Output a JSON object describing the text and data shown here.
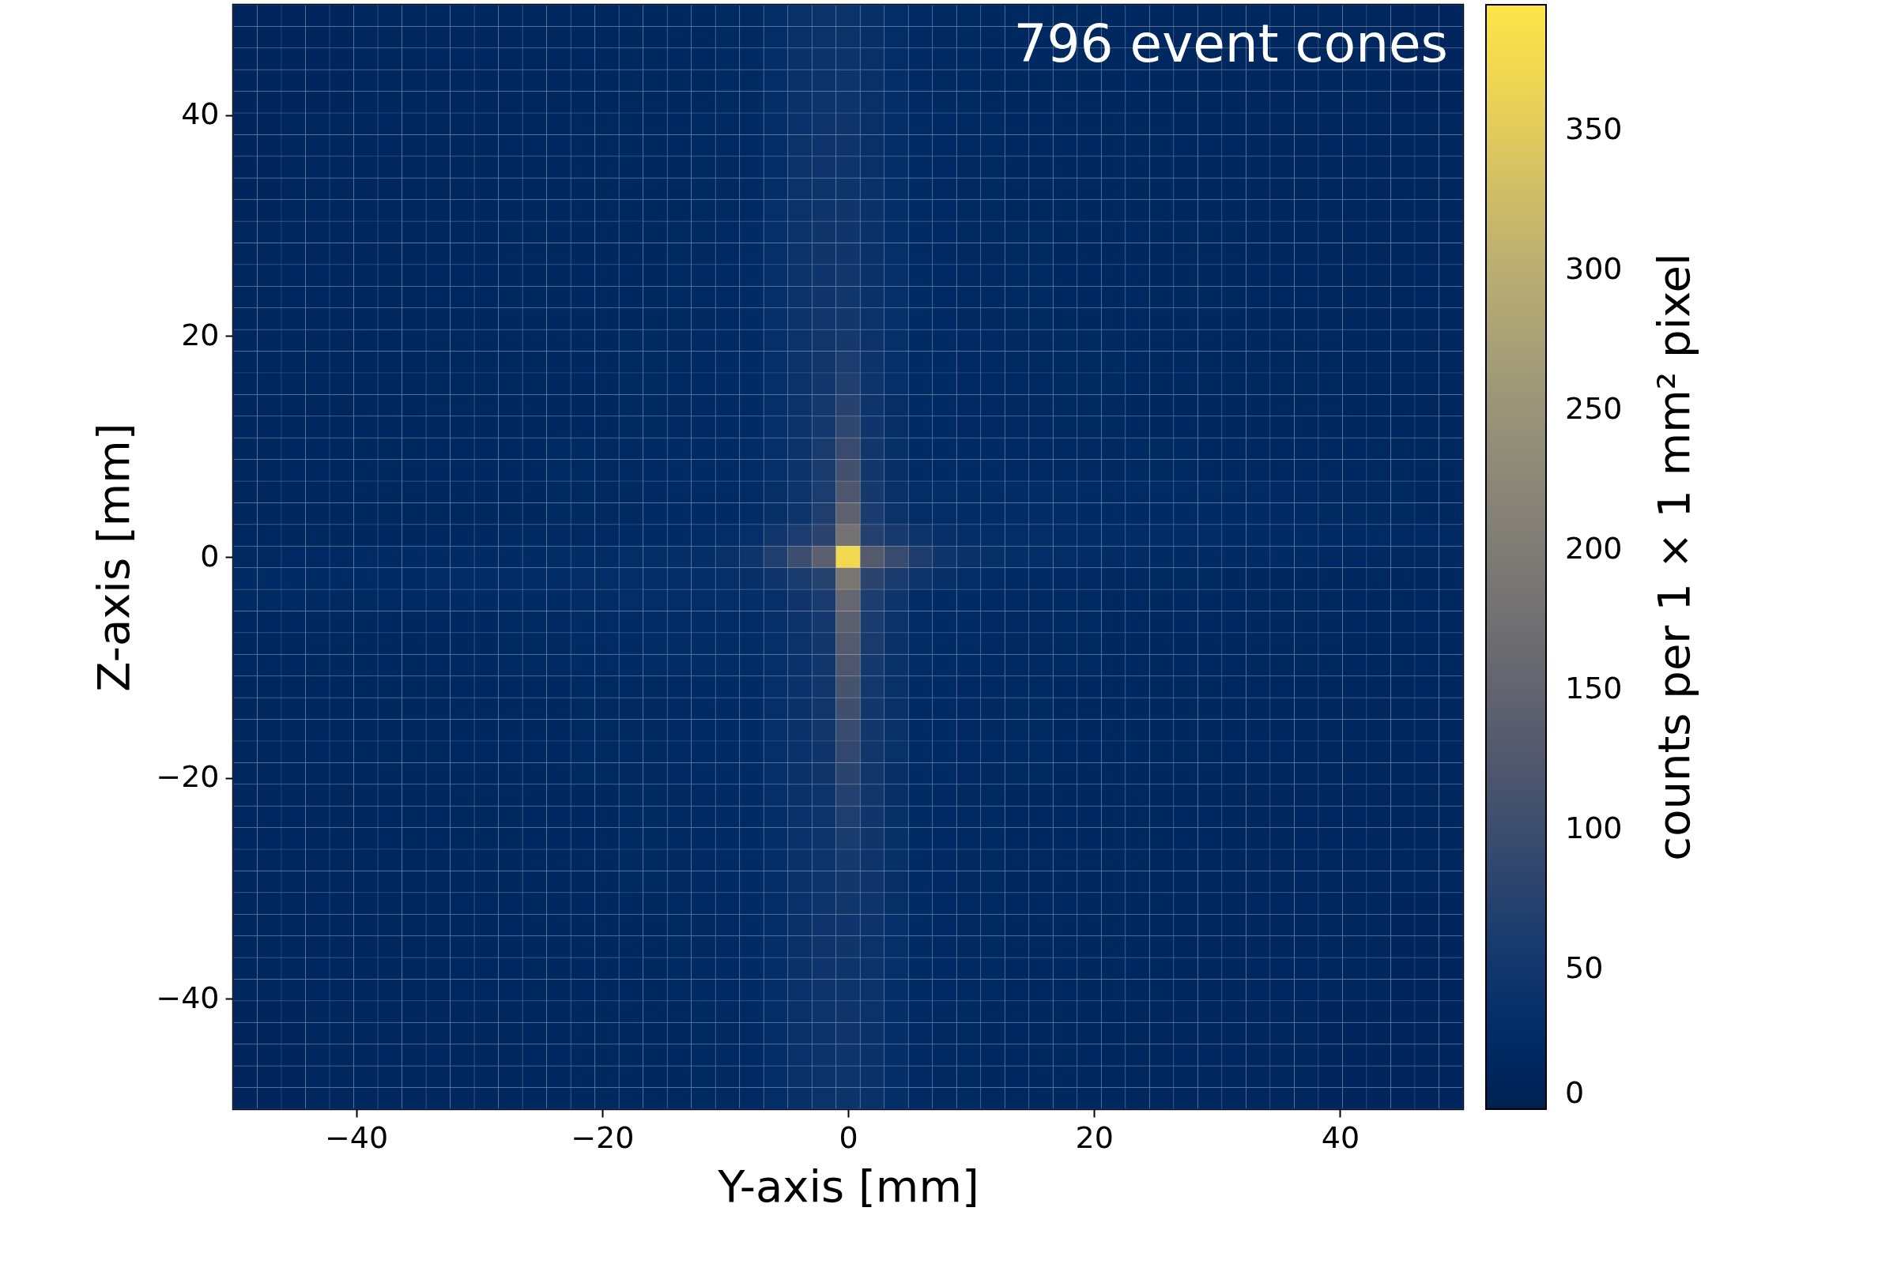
{
  "chart_data": {
    "type": "heatmap",
    "xlabel": "Y-axis [mm]",
    "ylabel": "Z-axis [mm]",
    "clabel": "counts per 1 × 1 mm² pixel",
    "annotations": [
      "796 event cones"
    ],
    "xlim": [
      -50,
      50
    ],
    "ylim": [
      -50,
      50
    ],
    "xticks": [
      -40,
      -20,
      0,
      20,
      40
    ],
    "yticks": [
      -40,
      -20,
      0,
      20,
      40
    ],
    "clim": [
      0,
      395
    ],
    "cticks": [
      0,
      50,
      100,
      150,
      200,
      250,
      300,
      350
    ],
    "cells": [
      [
        12,
        12,
        13,
        13,
        13,
        14,
        14,
        14,
        15,
        15,
        15,
        16,
        16,
        16,
        17,
        17,
        18,
        18,
        19,
        20,
        21,
        22,
        30,
        38,
        42,
        42,
        36,
        30,
        23,
        22,
        21,
        20,
        19,
        19,
        18,
        18,
        17,
        17,
        17,
        16,
        16,
        16,
        15,
        15,
        15,
        14,
        14,
        14,
        13,
        13,
        13
      ],
      [
        12,
        12,
        13,
        13,
        13,
        14,
        14,
        14,
        15,
        15,
        15,
        16,
        16,
        16,
        17,
        17,
        18,
        18,
        19,
        20,
        21,
        22,
        30,
        38,
        42,
        42,
        36,
        30,
        23,
        22,
        21,
        20,
        19,
        19,
        18,
        18,
        17,
        17,
        17,
        16,
        16,
        16,
        15,
        15,
        15,
        14,
        14,
        14,
        13,
        13,
        13
      ],
      [
        12,
        12,
        13,
        13,
        13,
        14,
        14,
        14,
        15,
        15,
        15,
        16,
        16,
        16,
        17,
        17,
        18,
        18,
        19,
        20,
        21,
        22,
        31,
        39,
        43,
        43,
        37,
        30,
        23,
        22,
        21,
        20,
        19,
        19,
        18,
        18,
        17,
        17,
        17,
        16,
        16,
        16,
        15,
        15,
        15,
        14,
        14,
        14,
        13,
        13,
        13
      ],
      [
        12,
        12,
        13,
        13,
        13,
        14,
        14,
        14,
        15,
        15,
        15,
        16,
        16,
        16,
        17,
        17,
        18,
        18,
        19,
        20,
        21,
        22,
        31,
        39,
        43,
        44,
        37,
        31,
        23,
        22,
        21,
        20,
        19,
        19,
        18,
        18,
        17,
        17,
        17,
        16,
        16,
        16,
        15,
        15,
        15,
        14,
        14,
        14,
        13,
        13,
        13
      ],
      [
        12,
        12,
        13,
        13,
        13,
        14,
        14,
        14,
        15,
        15,
        15,
        16,
        16,
        16,
        17,
        17,
        18,
        18,
        19,
        20,
        21,
        22,
        31,
        40,
        44,
        44,
        37,
        31,
        23,
        22,
        21,
        20,
        19,
        19,
        18,
        18,
        17,
        17,
        17,
        16,
        16,
        16,
        15,
        15,
        15,
        14,
        14,
        14,
        13,
        13,
        13
      ],
      [
        13,
        13,
        14,
        14,
        14,
        15,
        15,
        15,
        16,
        16,
        16,
        17,
        17,
        17,
        18,
        18,
        19,
        19,
        20,
        21,
        22,
        23,
        32,
        40,
        44,
        45,
        38,
        31,
        24,
        23,
        22,
        21,
        20,
        20,
        19,
        19,
        18,
        18,
        18,
        17,
        17,
        17,
        16,
        16,
        16,
        15,
        15,
        15,
        14,
        14,
        14
      ],
      [
        13,
        13,
        14,
        14,
        14,
        15,
        15,
        15,
        16,
        16,
        16,
        17,
        17,
        17,
        18,
        18,
        19,
        19,
        20,
        21,
        22,
        23,
        32,
        41,
        45,
        45,
        38,
        31,
        24,
        23,
        22,
        21,
        20,
        20,
        19,
        19,
        18,
        18,
        18,
        17,
        17,
        17,
        16,
        16,
        16,
        15,
        15,
        15,
        14,
        14,
        14
      ],
      [
        13,
        13,
        14,
        14,
        14,
        15,
        15,
        15,
        16,
        16,
        16,
        17,
        17,
        17,
        18,
        18,
        19,
        19,
        20,
        21,
        22,
        23,
        32,
        41,
        45,
        46,
        38,
        32,
        24,
        23,
        22,
        21,
        20,
        20,
        19,
        19,
        18,
        18,
        18,
        17,
        17,
        17,
        16,
        16,
        16,
        15,
        15,
        15,
        14,
        14,
        14
      ],
      [
        13,
        13,
        14,
        14,
        14,
        15,
        15,
        15,
        16,
        16,
        16,
        17,
        17,
        17,
        18,
        18,
        19,
        19,
        20,
        21,
        22,
        23,
        32,
        41,
        46,
        46,
        39,
        32,
        24,
        23,
        22,
        21,
        20,
        20,
        19,
        19,
        18,
        18,
        18,
        17,
        17,
        17,
        16,
        16,
        16,
        15,
        15,
        15,
        14,
        14,
        14
      ],
      [
        13,
        13,
        14,
        14,
        14,
        15,
        15,
        15,
        16,
        16,
        16,
        17,
        17,
        17,
        18,
        18,
        19,
        19,
        20,
        21,
        22,
        23,
        33,
        42,
        46,
        47,
        39,
        32,
        24,
        23,
        22,
        21,
        20,
        20,
        19,
        19,
        18,
        18,
        18,
        17,
        17,
        17,
        16,
        16,
        16,
        15,
        15,
        15,
        14,
        14,
        14
      ],
      [
        14,
        14,
        15,
        15,
        15,
        16,
        16,
        16,
        17,
        17,
        17,
        18,
        18,
        18,
        19,
        19,
        20,
        20,
        21,
        22,
        23,
        24,
        33,
        42,
        47,
        48,
        40,
        32,
        24,
        23,
        22,
        22,
        21,
        21,
        20,
        20,
        19,
        19,
        19,
        18,
        18,
        18,
        17,
        17,
        17,
        16,
        16,
        16,
        15,
        15,
        15
      ],
      [
        14,
        14,
        15,
        15,
        15,
        16,
        16,
        16,
        17,
        17,
        17,
        18,
        18,
        18,
        19,
        19,
        20,
        20,
        21,
        22,
        23,
        24,
        33,
        42,
        47,
        48,
        40,
        33,
        24,
        23,
        22,
        22,
        21,
        21,
        20,
        20,
        19,
        19,
        19,
        18,
        18,
        18,
        17,
        17,
        17,
        16,
        16,
        16,
        15,
        15,
        15
      ],
      [
        14,
        14,
        15,
        15,
        15,
        16,
        16,
        16,
        17,
        17,
        17,
        18,
        18,
        18,
        19,
        19,
        20,
        20,
        21,
        22,
        23,
        24,
        33,
        42,
        48,
        49,
        40,
        33,
        24,
        23,
        22,
        22,
        21,
        21,
        20,
        20,
        19,
        19,
        19,
        18,
        18,
        18,
        17,
        17,
        17,
        16,
        16,
        16,
        15,
        15,
        15
      ],
      [
        14,
        14,
        15,
        15,
        15,
        16,
        16,
        16,
        17,
        17,
        17,
        18,
        18,
        18,
        19,
        19,
        20,
        20,
        21,
        22,
        23,
        24,
        33,
        42,
        48,
        50,
        40,
        33,
        24,
        23,
        22,
        22,
        21,
        21,
        20,
        20,
        19,
        19,
        19,
        18,
        18,
        18,
        17,
        17,
        17,
        16,
        16,
        16,
        15,
        15,
        15
      ],
      [
        14,
        14,
        15,
        15,
        15,
        16,
        16,
        16,
        17,
        17,
        17,
        18,
        18,
        18,
        19,
        19,
        20,
        20,
        21,
        22,
        23,
        24,
        33,
        42,
        49,
        52,
        41,
        33,
        24,
        23,
        22,
        22,
        21,
        21,
        20,
        20,
        19,
        19,
        19,
        18,
        18,
        18,
        17,
        17,
        17,
        16,
        16,
        16,
        15,
        15,
        15
      ],
      [
        15,
        15,
        16,
        16,
        16,
        17,
        17,
        17,
        18,
        18,
        18,
        19,
        19,
        19,
        20,
        20,
        21,
        21,
        22,
        23,
        24,
        25,
        33,
        42,
        50,
        56,
        42,
        33,
        25,
        24,
        23,
        23,
        22,
        22,
        21,
        21,
        21,
        20,
        20,
        20,
        19,
        19,
        19,
        18,
        18,
        18,
        17,
        17,
        17,
        16,
        16
      ],
      [
        15,
        15,
        16,
        16,
        16,
        17,
        17,
        17,
        18,
        18,
        18,
        19,
        19,
        19,
        20,
        20,
        21,
        21,
        22,
        23,
        24,
        25,
        33,
        42,
        51,
        62,
        43,
        33,
        25,
        24,
        23,
        23,
        22,
        22,
        21,
        21,
        21,
        20,
        20,
        20,
        19,
        19,
        19,
        18,
        18,
        18,
        17,
        17,
        17,
        16,
        16
      ],
      [
        15,
        15,
        16,
        16,
        16,
        17,
        17,
        17,
        18,
        18,
        18,
        19,
        19,
        19,
        20,
        20,
        21,
        21,
        22,
        23,
        24,
        25,
        33,
        42,
        52,
        68,
        44,
        33,
        25,
        24,
        23,
        23,
        22,
        22,
        21,
        21,
        21,
        20,
        20,
        20,
        19,
        19,
        19,
        18,
        18,
        18,
        17,
        17,
        17,
        16,
        16
      ],
      [
        15,
        15,
        16,
        16,
        16,
        17,
        17,
        17,
        18,
        18,
        18,
        19,
        19,
        19,
        20,
        20,
        21,
        21,
        22,
        23,
        24,
        25,
        33,
        42,
        54,
        76,
        46,
        34,
        25,
        24,
        23,
        23,
        22,
        22,
        21,
        21,
        21,
        20,
        20,
        20,
        19,
        19,
        19,
        18,
        18,
        18,
        17,
        17,
        17,
        16,
        16
      ],
      [
        15,
        15,
        16,
        16,
        16,
        17,
        17,
        17,
        18,
        18,
        18,
        19,
        19,
        19,
        20,
        20,
        21,
        21,
        22,
        23,
        24,
        25,
        33,
        42,
        56,
        85,
        48,
        34,
        25,
        24,
        23,
        23,
        22,
        22,
        21,
        21,
        21,
        20,
        20,
        20,
        19,
        19,
        19,
        18,
        18,
        18,
        17,
        17,
        17,
        16,
        16
      ],
      [
        16,
        16,
        17,
        17,
        17,
        18,
        18,
        18,
        19,
        19,
        19,
        20,
        20,
        21,
        21,
        22,
        22,
        23,
        24,
        25,
        26,
        27,
        33,
        42,
        58,
        95,
        50,
        35,
        26,
        25,
        24,
        24,
        23,
        23,
        22,
        22,
        22,
        21,
        21,
        21,
        20,
        20,
        20,
        20,
        19,
        19,
        19,
        19,
        18,
        18,
        18
      ],
      [
        16,
        16,
        17,
        17,
        17,
        18,
        18,
        18,
        19,
        19,
        19,
        20,
        20,
        21,
        21,
        22,
        22,
        23,
        24,
        25,
        26,
        27,
        33,
        43,
        60,
        108,
        52,
        36,
        26,
        25,
        24,
        24,
        23,
        23,
        22,
        22,
        22,
        21,
        21,
        21,
        20,
        20,
        20,
        20,
        19,
        19,
        19,
        19,
        18,
        18,
        18
      ],
      [
        16,
        16,
        17,
        17,
        17,
        18,
        18,
        18,
        19,
        19,
        19,
        20,
        20,
        21,
        21,
        22,
        22,
        23,
        24,
        25,
        26,
        27,
        34,
        44,
        62,
        122,
        55,
        37,
        30,
        29,
        28,
        28,
        27,
        27,
        27,
        26,
        26,
        26,
        25,
        25,
        25,
        24,
        24,
        23,
        23,
        22,
        22,
        21,
        21,
        20,
        20
      ],
      [
        16,
        16,
        17,
        17,
        17,
        18,
        18,
        18,
        19,
        19,
        19,
        20,
        20,
        21,
        21,
        22,
        22,
        23,
        24,
        25,
        26,
        27,
        36,
        46,
        66,
        145,
        60,
        42,
        30,
        29,
        28,
        28,
        27,
        27,
        27,
        26,
        26,
        26,
        25,
        25,
        25,
        24,
        24,
        23,
        23,
        22,
        22,
        21,
        21,
        20,
        20
      ],
      [
        17,
        17,
        18,
        18,
        18,
        19,
        19,
        19,
        20,
        20,
        20,
        21,
        21,
        22,
        22,
        23,
        24,
        25,
        26,
        27,
        29,
        33,
        50,
        62,
        80,
        180,
        72,
        57,
        44,
        36,
        31,
        29,
        29,
        29,
        28,
        28,
        28,
        28,
        27,
        27,
        27,
        26,
        26,
        26,
        25,
        25,
        24,
        24,
        23,
        23,
        23
      ],
      [
        22,
        22,
        23,
        23,
        23,
        24,
        24,
        24,
        25,
        25,
        25,
        26,
        26,
        27,
        27,
        28,
        29,
        30,
        31,
        32,
        38,
        45,
        68,
        100,
        140,
        375,
        130,
        95,
        65,
        48,
        40,
        35,
        32,
        30,
        29,
        28,
        27,
        27,
        26,
        26,
        25,
        25,
        24,
        24,
        24,
        23,
        23,
        23,
        22,
        22,
        22
      ],
      [
        24,
        24,
        25,
        25,
        25,
        26,
        26,
        26,
        27,
        27,
        27,
        28,
        28,
        28,
        29,
        29,
        30,
        30,
        31,
        32,
        33,
        36,
        48,
        58,
        75,
        190,
        80,
        58,
        44,
        36,
        30,
        27,
        25,
        24,
        23,
        23,
        22,
        22,
        21,
        21,
        21,
        20,
        20,
        20,
        20,
        19,
        19,
        19,
        19,
        18,
        18
      ],
      [
        21,
        21,
        21,
        22,
        22,
        22,
        23,
        23,
        23,
        24,
        24,
        25,
        25,
        26,
        27,
        28,
        29,
        30,
        30,
        30,
        31,
        32,
        36,
        45,
        58,
        155,
        64,
        44,
        27,
        25,
        24,
        23,
        22,
        22,
        21,
        21,
        20,
        20,
        20,
        19,
        19,
        19,
        18,
        18,
        18,
        18,
        17,
        17,
        17,
        17,
        17
      ],
      [
        17,
        17,
        17,
        18,
        18,
        18,
        19,
        19,
        19,
        20,
        20,
        21,
        21,
        22,
        24,
        25,
        26,
        27,
        27,
        27,
        28,
        28,
        34,
        42,
        55,
        140,
        60,
        42,
        27,
        25,
        24,
        23,
        22,
        22,
        21,
        21,
        20,
        20,
        20,
        19,
        19,
        19,
        18,
        18,
        18,
        18,
        17,
        17,
        17,
        17,
        17
      ],
      [
        17,
        17,
        17,
        18,
        18,
        18,
        19,
        19,
        19,
        20,
        20,
        21,
        21,
        22,
        24,
        25,
        26,
        27,
        27,
        27,
        28,
        28,
        33,
        41,
        53,
        130,
        58,
        40,
        27,
        25,
        24,
        23,
        22,
        22,
        21,
        21,
        20,
        20,
        20,
        19,
        19,
        19,
        18,
        18,
        18,
        18,
        17,
        17,
        17,
        17,
        17
      ],
      [
        17,
        17,
        17,
        18,
        18,
        18,
        19,
        19,
        19,
        20,
        20,
        21,
        21,
        22,
        24,
        25,
        26,
        27,
        27,
        27,
        28,
        28,
        33,
        40,
        52,
        120,
        56,
        39,
        27,
        25,
        24,
        23,
        22,
        22,
        21,
        21,
        20,
        20,
        20,
        19,
        19,
        19,
        18,
        18,
        18,
        18,
        17,
        17,
        17,
        17,
        17
      ],
      [
        16,
        16,
        16,
        17,
        17,
        17,
        18,
        18,
        18,
        19,
        19,
        19,
        20,
        20,
        21,
        21,
        22,
        22,
        23,
        24,
        25,
        26,
        33,
        40,
        51,
        112,
        54,
        38,
        25,
        24,
        23,
        22,
        21,
        21,
        20,
        20,
        19,
        19,
        18,
        18,
        18,
        17,
        17,
        17,
        16,
        16,
        16,
        16,
        15,
        15,
        15
      ],
      [
        16,
        16,
        16,
        17,
        17,
        17,
        18,
        18,
        18,
        19,
        19,
        19,
        20,
        20,
        21,
        21,
        22,
        22,
        23,
        24,
        25,
        26,
        33,
        40,
        50,
        104,
        53,
        38,
        25,
        24,
        23,
        22,
        21,
        21,
        20,
        20,
        19,
        19,
        18,
        18,
        18,
        17,
        17,
        17,
        16,
        16,
        16,
        16,
        15,
        15,
        15
      ],
      [
        16,
        16,
        16,
        17,
        17,
        17,
        18,
        18,
        18,
        19,
        19,
        19,
        20,
        20,
        21,
        21,
        22,
        22,
        23,
        24,
        25,
        26,
        33,
        40,
        49,
        96,
        52,
        37,
        25,
        24,
        23,
        22,
        21,
        21,
        20,
        20,
        19,
        19,
        18,
        18,
        18,
        17,
        17,
        17,
        16,
        16,
        16,
        16,
        15,
        15,
        15
      ],
      [
        16,
        16,
        16,
        17,
        17,
        17,
        18,
        18,
        18,
        19,
        19,
        19,
        20,
        20,
        21,
        21,
        22,
        22,
        23,
        24,
        25,
        26,
        33,
        40,
        48,
        88,
        51,
        37,
        25,
        24,
        23,
        22,
        21,
        21,
        20,
        20,
        19,
        19,
        18,
        18,
        18,
        17,
        17,
        17,
        16,
        16,
        16,
        16,
        15,
        15,
        15
      ],
      [
        16,
        16,
        16,
        17,
        17,
        17,
        18,
        18,
        18,
        19,
        19,
        19,
        20,
        20,
        21,
        21,
        22,
        22,
        23,
        24,
        25,
        26,
        33,
        40,
        47,
        80,
        50,
        36,
        25,
        24,
        23,
        22,
        21,
        21,
        20,
        20,
        19,
        19,
        18,
        18,
        18,
        17,
        17,
        17,
        16,
        16,
        16,
        16,
        15,
        15,
        15
      ],
      [
        15,
        15,
        15,
        16,
        16,
        16,
        17,
        17,
        17,
        18,
        18,
        18,
        19,
        19,
        20,
        20,
        21,
        21,
        22,
        23,
        24,
        25,
        33,
        40,
        46,
        72,
        49,
        36,
        24,
        23,
        22,
        21,
        20,
        20,
        19,
        19,
        18,
        18,
        17,
        17,
        17,
        16,
        16,
        16,
        15,
        15,
        15,
        15,
        14,
        14,
        14
      ],
      [
        15,
        15,
        15,
        16,
        16,
        16,
        17,
        17,
        17,
        18,
        18,
        18,
        19,
        19,
        20,
        20,
        21,
        21,
        22,
        23,
        24,
        25,
        32,
        40,
        46,
        66,
        48,
        35,
        24,
        23,
        22,
        21,
        20,
        20,
        19,
        19,
        18,
        18,
        17,
        17,
        17,
        16,
        16,
        16,
        15,
        15,
        15,
        15,
        14,
        14,
        14
      ],
      [
        15,
        15,
        15,
        16,
        16,
        16,
        17,
        17,
        17,
        18,
        18,
        18,
        19,
        19,
        20,
        20,
        21,
        21,
        22,
        23,
        24,
        25,
        32,
        40,
        46,
        60,
        47,
        35,
        24,
        23,
        22,
        21,
        20,
        20,
        19,
        19,
        18,
        18,
        17,
        17,
        17,
        16,
        16,
        16,
        15,
        15,
        15,
        15,
        14,
        14,
        14
      ],
      [
        15,
        15,
        15,
        16,
        16,
        16,
        17,
        17,
        17,
        18,
        18,
        18,
        19,
        19,
        20,
        20,
        21,
        21,
        22,
        23,
        24,
        25,
        32,
        40,
        46,
        55,
        46,
        35,
        24,
        23,
        22,
        21,
        20,
        20,
        19,
        19,
        18,
        18,
        17,
        17,
        17,
        16,
        16,
        16,
        15,
        15,
        15,
        15,
        14,
        14,
        14
      ],
      [
        15,
        15,
        15,
        16,
        16,
        16,
        17,
        17,
        17,
        18,
        18,
        18,
        19,
        19,
        20,
        20,
        21,
        21,
        22,
        23,
        24,
        25,
        32,
        40,
        46,
        52,
        45,
        34,
        24,
        23,
        22,
        21,
        20,
        20,
        19,
        19,
        18,
        18,
        17,
        17,
        17,
        16,
        16,
        16,
        15,
        15,
        15,
        15,
        14,
        14,
        14
      ],
      [
        14,
        14,
        14,
        15,
        15,
        15,
        16,
        16,
        16,
        17,
        17,
        17,
        18,
        18,
        19,
        19,
        20,
        20,
        21,
        22,
        23,
        24,
        32,
        40,
        46,
        50,
        44,
        34,
        24,
        23,
        22,
        21,
        20,
        19,
        19,
        18,
        18,
        17,
        17,
        16,
        16,
        16,
        15,
        15,
        15,
        14,
        14,
        14,
        13,
        13,
        13
      ],
      [
        14,
        14,
        14,
        15,
        15,
        15,
        16,
        16,
        16,
        17,
        17,
        17,
        18,
        18,
        19,
        19,
        20,
        20,
        21,
        22,
        23,
        24,
        32,
        39,
        45,
        48,
        43,
        33,
        24,
        23,
        22,
        21,
        20,
        19,
        19,
        18,
        18,
        17,
        17,
        16,
        16,
        16,
        15,
        15,
        15,
        14,
        14,
        14,
        13,
        13,
        13
      ],
      [
        14,
        14,
        14,
        15,
        15,
        15,
        16,
        16,
        16,
        17,
        17,
        17,
        18,
        18,
        19,
        19,
        20,
        20,
        21,
        22,
        23,
        24,
        31,
        39,
        45,
        47,
        42,
        33,
        24,
        23,
        22,
        21,
        20,
        19,
        19,
        18,
        18,
        17,
        17,
        16,
        16,
        16,
        15,
        15,
        15,
        14,
        14,
        14,
        13,
        13,
        13
      ],
      [
        14,
        14,
        14,
        15,
        15,
        15,
        16,
        16,
        16,
        17,
        17,
        17,
        18,
        18,
        19,
        19,
        20,
        20,
        21,
        22,
        23,
        24,
        31,
        39,
        45,
        46,
        42,
        33,
        24,
        23,
        22,
        21,
        20,
        19,
        19,
        18,
        18,
        17,
        17,
        16,
        16,
        16,
        15,
        15,
        15,
        14,
        14,
        14,
        13,
        13,
        13
      ],
      [
        14,
        14,
        14,
        15,
        15,
        15,
        16,
        16,
        16,
        17,
        17,
        17,
        18,
        18,
        19,
        19,
        20,
        20,
        21,
        22,
        23,
        24,
        31,
        38,
        44,
        46,
        41,
        32,
        24,
        23,
        22,
        21,
        20,
        19,
        19,
        18,
        18,
        17,
        17,
        16,
        16,
        16,
        15,
        15,
        15,
        14,
        14,
        14,
        13,
        13,
        13
      ],
      [
        13,
        13,
        13,
        14,
        14,
        14,
        15,
        15,
        15,
        16,
        16,
        16,
        17,
        17,
        18,
        18,
        19,
        19,
        20,
        21,
        22,
        23,
        31,
        38,
        44,
        45,
        41,
        32,
        23,
        22,
        21,
        20,
        19,
        18,
        18,
        17,
        17,
        16,
        16,
        15,
        15,
        15,
        14,
        14,
        14,
        13,
        13,
        13,
        12,
        12,
        12
      ],
      [
        13,
        13,
        13,
        14,
        14,
        14,
        15,
        15,
        15,
        16,
        16,
        16,
        17,
        17,
        18,
        18,
        19,
        19,
        20,
        21,
        22,
        23,
        30,
        38,
        43,
        45,
        40,
        32,
        23,
        22,
        21,
        20,
        19,
        18,
        18,
        17,
        17,
        16,
        16,
        15,
        15,
        15,
        14,
        14,
        14,
        13,
        13,
        13,
        12,
        12,
        12
      ],
      [
        13,
        13,
        13,
        14,
        14,
        14,
        15,
        15,
        15,
        16,
        16,
        16,
        17,
        17,
        18,
        18,
        19,
        19,
        20,
        21,
        22,
        23,
        30,
        37,
        43,
        44,
        40,
        31,
        23,
        22,
        21,
        20,
        19,
        18,
        18,
        17,
        17,
        16,
        16,
        15,
        15,
        15,
        14,
        14,
        14,
        13,
        13,
        13,
        12,
        12,
        12
      ],
      [
        13,
        13,
        13,
        14,
        14,
        14,
        15,
        15,
        15,
        16,
        16,
        16,
        17,
        17,
        18,
        18,
        19,
        19,
        20,
        21,
        22,
        23,
        30,
        37,
        42,
        44,
        39,
        31,
        23,
        22,
        21,
        20,
        19,
        18,
        18,
        17,
        17,
        16,
        16,
        15,
        15,
        15,
        14,
        14,
        14,
        13,
        13,
        13,
        12,
        12,
        12
      ],
      [
        13,
        13,
        13,
        14,
        14,
        14,
        15,
        15,
        15,
        16,
        16,
        16,
        17,
        17,
        18,
        18,
        19,
        19,
        20,
        21,
        22,
        23,
        30,
        36,
        42,
        43,
        39,
        31,
        23,
        22,
        21,
        20,
        19,
        18,
        18,
        17,
        17,
        16,
        16,
        15,
        15,
        15,
        14,
        14,
        14,
        13,
        13,
        13,
        12,
        12,
        12
      ]
    ]
  }
}
